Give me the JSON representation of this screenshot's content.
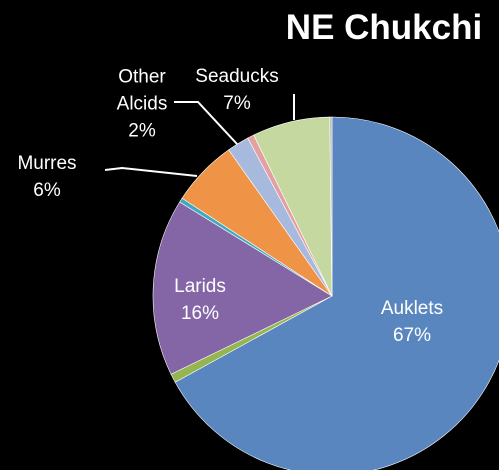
{
  "chart_data": {
    "type": "pie",
    "title": "NE Chukchi",
    "categories": [
      "Auklets",
      null,
      "Larids",
      null,
      "Murres",
      "Other Alcids",
      null,
      "Seaducks",
      null
    ],
    "values": [
      67,
      0.8,
      16,
      0.4,
      6,
      2,
      0.6,
      7,
      0.2
    ],
    "value_labels": [
      "67%",
      null,
      "16%",
      null,
      "6%",
      "2%",
      null,
      "7%",
      null
    ],
    "colors": [
      "#5a86bf",
      "#94b54f",
      "#8466a6",
      "#3fa9c3",
      "#ef9447",
      "#a7b9dd",
      "#e2a1a0",
      "#c5d8a0",
      "#b8b8b8"
    ]
  }
}
